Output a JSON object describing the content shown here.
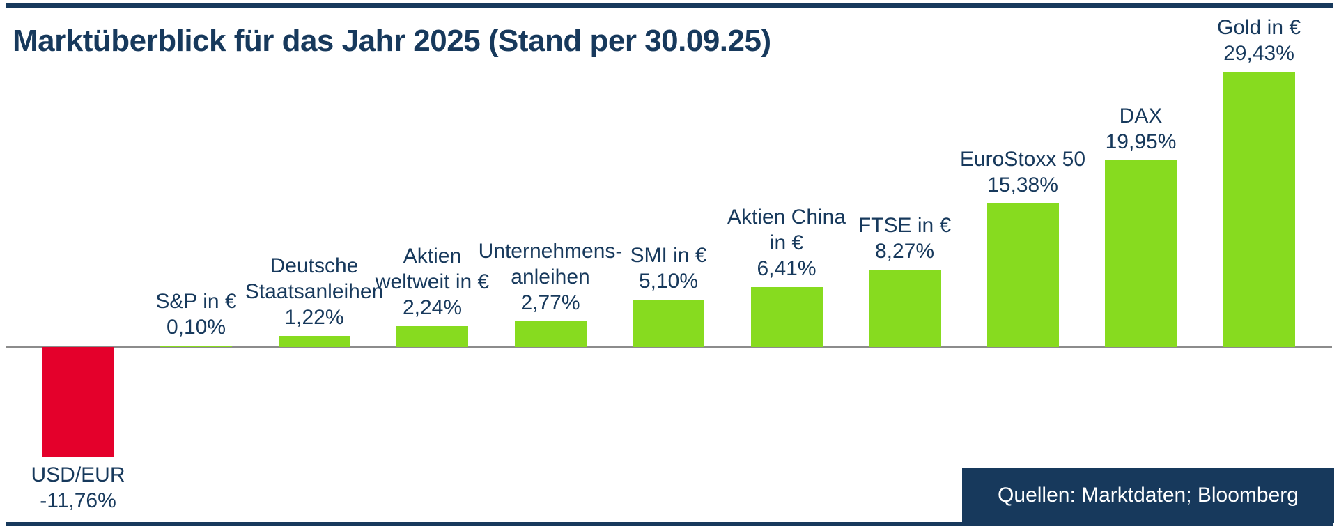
{
  "header": {
    "title": "Marktüberblick für das Jahr 2025 (Stand per 30.09.25)"
  },
  "footer": {
    "source_label": "Quellen: Marktdaten; Bloomberg"
  },
  "colors": {
    "navy": "#17395c",
    "positive": "#87db1f",
    "negative": "#e4002b",
    "axis_gray": "#8c8c8c",
    "background": "#ffffff"
  },
  "chart_data": {
    "type": "bar",
    "title": "Marktüberblick für das Jahr 2025 (Stand per 30.09.25)",
    "xlabel": "",
    "ylabel": "",
    "unit": "percent",
    "ylim": [
      -13,
      31
    ],
    "baseline": 0,
    "grid": false,
    "legend": false,
    "source": "Quellen: Marktdaten; Bloomberg",
    "categories": [
      "USD/EUR",
      "S&P in €",
      "Deutsche Staatsanleihen",
      "Aktien weltweit in €",
      "Unternehmens-anleihen",
      "SMI in €",
      "Aktien China in €",
      "FTSE in €",
      "EuroStoxx 50",
      "DAX",
      "Gold in €"
    ],
    "values": [
      -11.76,
      0.1,
      1.22,
      2.24,
      2.77,
      5.1,
      6.41,
      8.27,
      15.38,
      19.95,
      29.43
    ],
    "bars": [
      {
        "id": "usd-eur",
        "label_lines": [
          "USD/EUR"
        ],
        "value": -11.76,
        "value_label": "-11,76%",
        "color": "negative",
        "label_position": "below"
      },
      {
        "id": "sp-in-eur",
        "label_lines": [
          "S&P in €"
        ],
        "value": 0.1,
        "value_label": "0,10%",
        "color": "positive",
        "label_position": "above"
      },
      {
        "id": "deutsche-staatsanleihen",
        "label_lines": [
          "Deutsche",
          "Staatsanleihen"
        ],
        "value": 1.22,
        "value_label": "1,22%",
        "color": "positive",
        "label_position": "above"
      },
      {
        "id": "aktien-weltweit",
        "label_lines": [
          "Aktien",
          "weltweit in €"
        ],
        "value": 2.24,
        "value_label": "2,24%",
        "color": "positive",
        "label_position": "above"
      },
      {
        "id": "unternehmensanleihen",
        "label_lines": [
          "Unternehmens-",
          "anleihen"
        ],
        "value": 2.77,
        "value_label": "2,77%",
        "color": "positive",
        "label_position": "above"
      },
      {
        "id": "smi-in-eur",
        "label_lines": [
          "SMI in €"
        ],
        "value": 5.1,
        "value_label": "5,10%",
        "color": "positive",
        "label_position": "above"
      },
      {
        "id": "aktien-china",
        "label_lines": [
          "Aktien China",
          "in €"
        ],
        "value": 6.41,
        "value_label": "6,41%",
        "color": "positive",
        "label_position": "above"
      },
      {
        "id": "ftse-in-eur",
        "label_lines": [
          "FTSE in €"
        ],
        "value": 8.27,
        "value_label": "8,27%",
        "color": "positive",
        "label_position": "above"
      },
      {
        "id": "eurostoxx-50",
        "label_lines": [
          "EuroStoxx 50"
        ],
        "value": 15.38,
        "value_label": "15,38%",
        "color": "positive",
        "label_position": "above"
      },
      {
        "id": "dax",
        "label_lines": [
          "DAX"
        ],
        "value": 19.95,
        "value_label": "19,95%",
        "color": "positive",
        "label_position": "above"
      },
      {
        "id": "gold-in-eur",
        "label_lines": [
          "Gold in €"
        ],
        "value": 29.43,
        "value_label": "29,43%",
        "color": "positive",
        "label_position": "above"
      }
    ]
  }
}
